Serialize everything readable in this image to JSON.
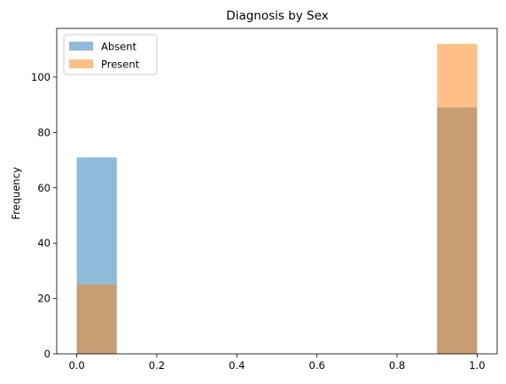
{
  "chart_data": {
    "type": "bar",
    "title": "Diagnosis by Sex",
    "xlabel": "",
    "ylabel": "Frequency",
    "xlim": [
      -0.05,
      1.05
    ],
    "ylim": [
      0,
      117.6
    ],
    "x_ticks": [
      0.0,
      0.2,
      0.4,
      0.6,
      0.8,
      1.0
    ],
    "x_tick_labels": [
      "0.0",
      "0.2",
      "0.4",
      "0.6",
      "0.8",
      "1.0"
    ],
    "y_ticks": [
      0,
      20,
      40,
      60,
      80,
      100
    ],
    "y_tick_labels": [
      "0",
      "20",
      "40",
      "60",
      "80",
      "100"
    ],
    "bins": [
      [
        0.0,
        0.1
      ],
      [
        0.9,
        1.0
      ]
    ],
    "series": [
      {
        "name": "Absent",
        "color": "#1f77b4",
        "alpha": 0.5,
        "values": [
          71,
          89
        ]
      },
      {
        "name": "Present",
        "color": "#ff7f0e",
        "alpha": 0.5,
        "values": [
          25,
          112
        ]
      }
    ],
    "legend": {
      "position": "top-left",
      "entries": [
        "Absent",
        "Present"
      ]
    },
    "grid": false
  }
}
